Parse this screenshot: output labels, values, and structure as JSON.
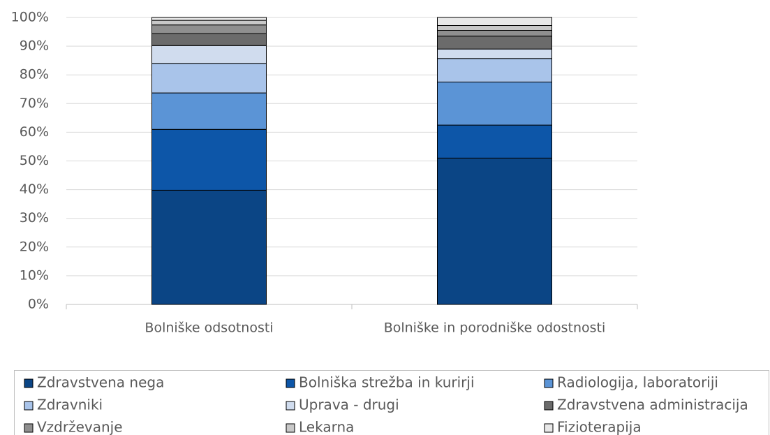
{
  "chart_data": {
    "type": "stacked_bar",
    "categories": [
      "Bolniške odsotnosti",
      "Bolniške in porodniške odostnosti"
    ],
    "series": [
      {
        "name": "Zdravstvena nega",
        "color": "#0b4585",
        "values": [
          39.8,
          51
        ]
      },
      {
        "name": "Bolniška strežba in kurirji",
        "color": "#0d56a8",
        "values": [
          21.2,
          11.5
        ]
      },
      {
        "name": "Radiologija, laboratoriji",
        "color": "#5b94d6",
        "values": [
          12.7,
          15
        ]
      },
      {
        "name": "Zdravniki",
        "color": "#a9c4ea",
        "values": [
          10.3,
          8.2
        ]
      },
      {
        "name": "Uprava - drugi",
        "color": "#d0dcee",
        "values": [
          6.2,
          3.3
        ]
      },
      {
        "name": "Zdravstvena administracija",
        "color": "#6b6b6b",
        "values": [
          4.2,
          4.5
        ]
      },
      {
        "name": "Vzdrževanje",
        "color": "#8f8f8f",
        "values": [
          3.0,
          2.0
        ]
      },
      {
        "name": "Lekarna",
        "color": "#c8c8c8",
        "values": [
          1.6,
          1.7
        ]
      },
      {
        "name": "Fizioterapija",
        "color": "#e8e8e8",
        "values": [
          1.0,
          2.8
        ]
      }
    ],
    "ylim": [
      0,
      100
    ],
    "yticks": [
      {
        "value": 0,
        "label": "0%"
      },
      {
        "value": 10,
        "label": "10%"
      },
      {
        "value": 20,
        "label": "20%"
      },
      {
        "value": 30,
        "label": "30%"
      },
      {
        "value": 40,
        "label": "40%"
      },
      {
        "value": 50,
        "label": "50%"
      },
      {
        "value": 60,
        "label": "60%"
      },
      {
        "value": 70,
        "label": "70%"
      },
      {
        "value": 80,
        "label": "80%"
      },
      {
        "value": 90,
        "label": "90%"
      },
      {
        "value": 100,
        "label": "100%"
      }
    ],
    "grid": true,
    "legend": "bottom"
  }
}
